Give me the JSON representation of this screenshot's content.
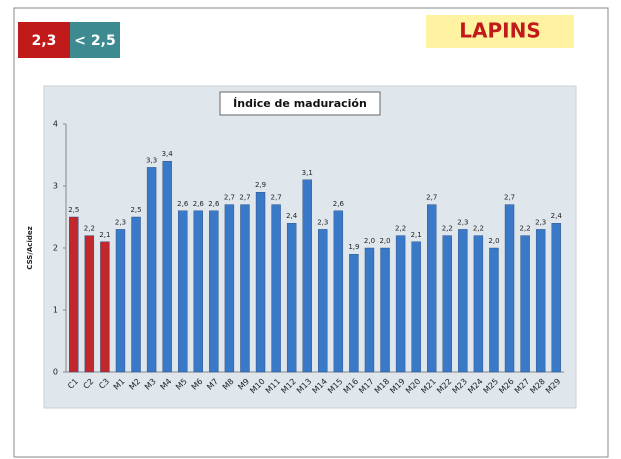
{
  "header": {
    "badge_low": "2,3",
    "badge_high": "< 2,5",
    "title": "LAPINS"
  },
  "chart_data": {
    "type": "bar",
    "title": "Índice de maduración",
    "y_label": "CSS/Acidez",
    "categories": [
      "C1",
      "C2",
      "C3",
      "M1",
      "M2",
      "M3",
      "M4",
      "M5",
      "M6",
      "M7",
      "M8",
      "M9",
      "M10",
      "M11",
      "M12",
      "M13",
      "M14",
      "M15",
      "M16",
      "M17",
      "M18",
      "M19",
      "M20",
      "M21",
      "M22",
      "M23",
      "M24",
      "M25",
      "M26",
      "M27",
      "M28",
      "M29"
    ],
    "values": [
      2.5,
      2.2,
      2.1,
      2.3,
      2.5,
      3.3,
      3.4,
      2.6,
      2.6,
      2.6,
      2.7,
      2.7,
      2.9,
      2.7,
      2.4,
      3.1,
      2.3,
      2.6,
      1.9,
      2.0,
      2.0,
      2.2,
      2.1,
      2.7,
      2.2,
      2.3,
      2.2,
      2.0,
      2.7,
      2.2,
      2.3,
      2.4
    ],
    "value_labels": [
      "2,5",
      "2,2",
      "2,1",
      "2,3",
      "2,5",
      "3,3",
      "3,4",
      "2,6",
      "2,6",
      "2,6",
      "2,7",
      "2,7",
      "2,9",
      "2,7",
      "2,4",
      "3,1",
      "2,3",
      "2,6",
      "1,9",
      "2,0",
      "2,0",
      "2,2",
      "2,1",
      "2,7",
      "2,2",
      "2,3",
      "2,2",
      "2,0",
      "2,7",
      "2,2",
      "2,3",
      "2,4"
    ],
    "colors": [
      "#c0282d",
      "#c0282d",
      "#c0282d",
      "#3a78c8",
      "#3a78c8",
      "#3a78c8",
      "#3a78c8",
      "#3a78c8",
      "#3a78c8",
      "#3a78c8",
      "#3a78c8",
      "#3a78c8",
      "#3a78c8",
      "#3a78c8",
      "#3a78c8",
      "#3a78c8",
      "#3a78c8",
      "#3a78c8",
      "#3a78c8",
      "#3a78c8",
      "#3a78c8",
      "#3a78c8",
      "#3a78c8",
      "#3a78c8",
      "#3a78c8",
      "#3a78c8",
      "#3a78c8",
      "#3a78c8",
      "#3a78c8",
      "#3a78c8",
      "#3a78c8",
      "#3a78c8"
    ],
    "ylim": [
      0,
      4
    ],
    "yticks": [
      0,
      1,
      2,
      3,
      4
    ],
    "grid": false
  }
}
